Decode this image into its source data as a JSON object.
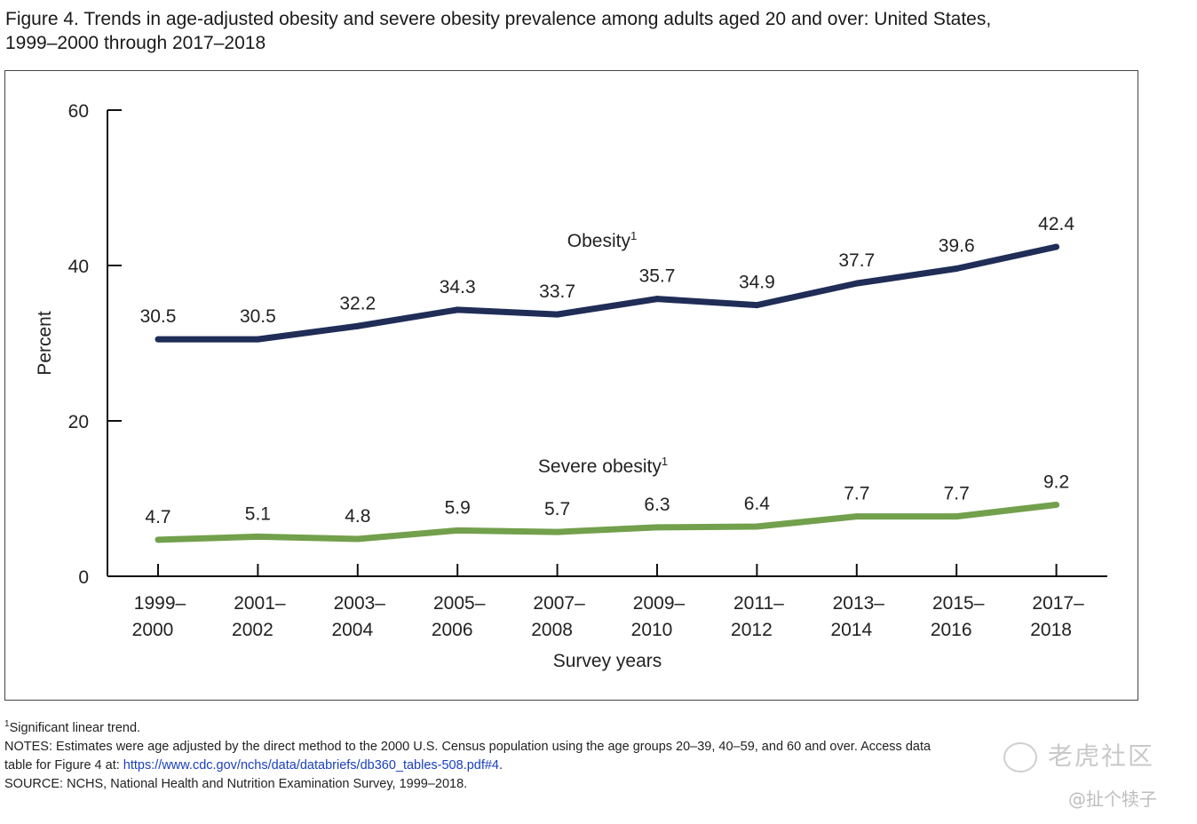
{
  "figure": {
    "title_line1": "Figure 4. Trends in age-adjusted obesity and severe obesity prevalence among adults aged 20 and over: United States,",
    "title_line2": "1999–2000 through 2017–2018"
  },
  "chart_data": {
    "type": "line",
    "title": "",
    "xlabel": "Survey years",
    "ylabel": "Percent",
    "ylim": [
      0,
      60
    ],
    "yticks": [
      0,
      20,
      40,
      60
    ],
    "grid": false,
    "categories": [
      [
        "1999–",
        "2000"
      ],
      [
        "2001–",
        "2002"
      ],
      [
        "2003–",
        "2004"
      ],
      [
        "2005–",
        "2006"
      ],
      [
        "2007–",
        "2008"
      ],
      [
        "2009–",
        "2010"
      ],
      [
        "2011–",
        "2012"
      ],
      [
        "2013–",
        "2014"
      ],
      [
        "2015–",
        "2016"
      ],
      [
        "2017–",
        "2018"
      ]
    ],
    "series": [
      {
        "name": "Obesity",
        "superscript": "1",
        "color": "#1f2d57",
        "values": [
          30.5,
          30.5,
          32.2,
          34.3,
          33.7,
          35.7,
          34.9,
          37.7,
          39.6,
          42.4
        ],
        "labels": [
          "30.5",
          "30.5",
          "32.2",
          "34.3",
          "33.7",
          "35.7",
          "34.9",
          "37.7",
          "39.6",
          "42.4"
        ]
      },
      {
        "name": "Severe obesity",
        "superscript": "1",
        "color": "#72a04c",
        "values": [
          4.7,
          5.1,
          4.8,
          5.9,
          5.7,
          6.3,
          6.4,
          7.7,
          7.7,
          9.2
        ],
        "labels": [
          "4.7",
          "5.1",
          "4.8",
          "5.9",
          "5.7",
          "6.3",
          "6.4",
          "7.7",
          "7.7",
          "9.2"
        ]
      }
    ]
  },
  "notes": {
    "footnote_mark": "1",
    "footnote_text": "Significant linear trend.",
    "notes_line1": "NOTES: Estimates were age adjusted by the direct method to the 2000 U.S. Census population using the age groups 20–39, 40–59, and 60 and over. Access data",
    "notes_line2_prefix": "table for Figure 4 at: ",
    "notes_link": "https://www.cdc.gov/nchs/data/databriefs/db360_tables-508.pdf#4",
    "notes_line2_suffix": ".",
    "source": "SOURCE: NCHS, National Health and Nutrition Examination Survey, 1999–2018."
  },
  "watermark": {
    "brand": "老虎社区",
    "user": "@扯个犊子"
  }
}
